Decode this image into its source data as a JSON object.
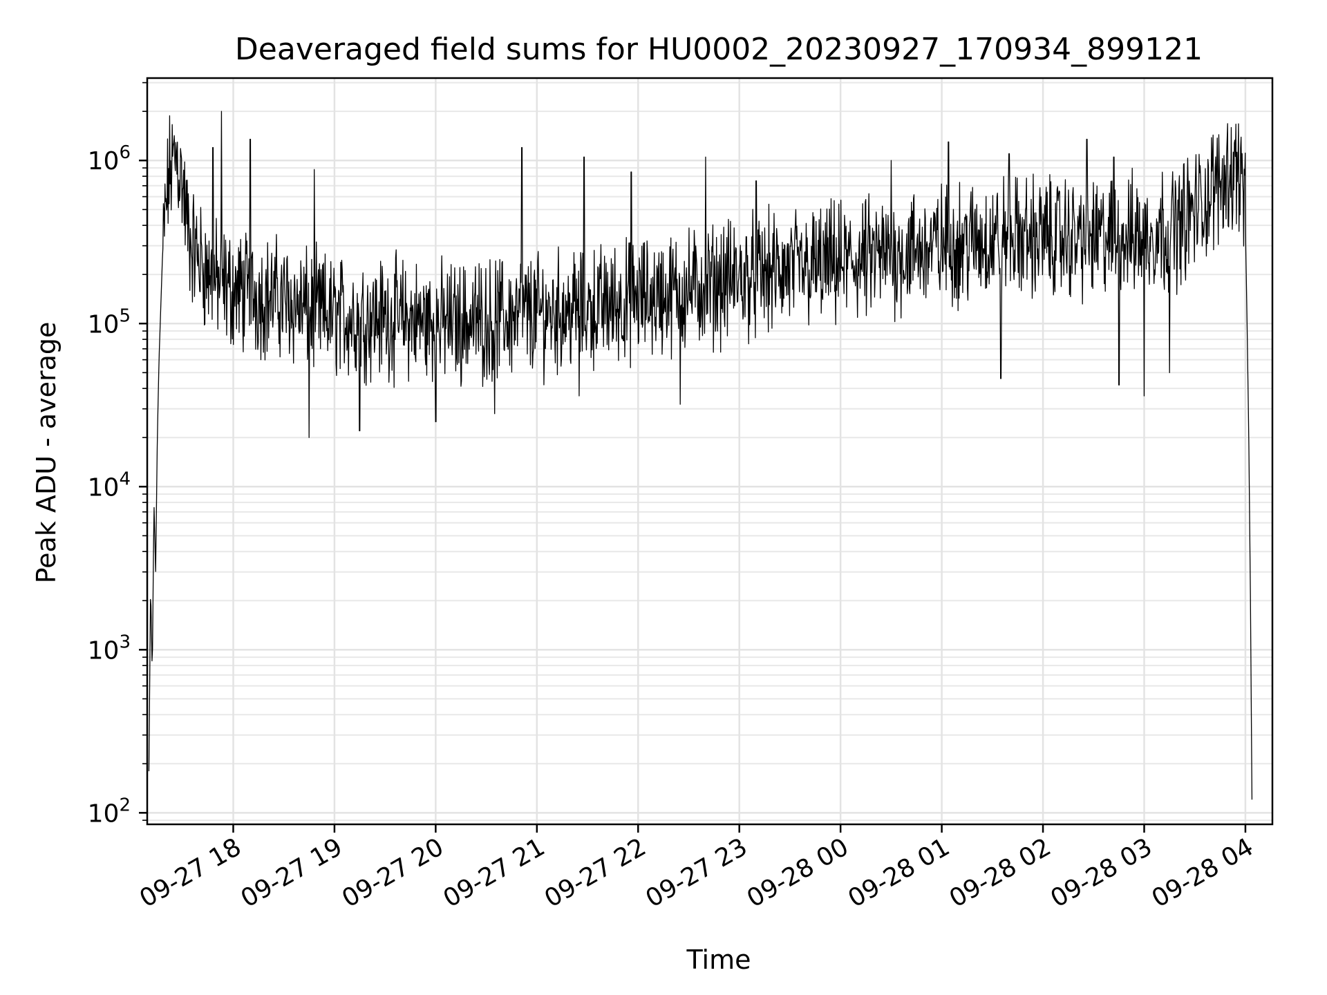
{
  "chart_data": {
    "type": "line",
    "title": "Deaveraged field sums for HU0002_20230927_170934_899121",
    "xlabel": "Time",
    "ylabel": "Peak ADU - average",
    "xscale": "time",
    "yscale": "log",
    "xlim": [
      "2023-09-27 17:09",
      "2023-09-28 04:16"
    ],
    "ylim": [
      85,
      3200000
    ],
    "grid": true,
    "x_ticks": [
      {
        "t": "2023-09-27 18:00",
        "label": "09-27 18"
      },
      {
        "t": "2023-09-27 19:00",
        "label": "09-27 19"
      },
      {
        "t": "2023-09-27 20:00",
        "label": "09-27 20"
      },
      {
        "t": "2023-09-27 21:00",
        "label": "09-27 21"
      },
      {
        "t": "2023-09-27 22:00",
        "label": "09-27 22"
      },
      {
        "t": "2023-09-27 23:00",
        "label": "09-27 23"
      },
      {
        "t": "2023-09-28 00:00",
        "label": "09-28 00"
      },
      {
        "t": "2023-09-28 01:00",
        "label": "09-28 01"
      },
      {
        "t": "2023-09-28 02:00",
        "label": "09-28 02"
      },
      {
        "t": "2023-09-28 03:00",
        "label": "09-28 03"
      },
      {
        "t": "2023-09-28 04:00",
        "label": "09-28 04"
      }
    ],
    "y_ticks": [
      {
        "value": 100,
        "base": "10",
        "exp": "2"
      },
      {
        "value": 1000,
        "base": "10",
        "exp": "3"
      },
      {
        "value": 10000,
        "base": "10",
        "exp": "4"
      },
      {
        "value": 100000,
        "base": "10",
        "exp": "5"
      },
      {
        "value": 1000000,
        "base": "10",
        "exp": "6"
      }
    ],
    "series": [
      {
        "color": "#000000",
        "points": [
          [
            "2023-09-27 17:10",
            180
          ],
          [
            "2023-09-27 17:11",
            2500
          ],
          [
            "2023-09-27 17:12",
            700
          ],
          [
            "2023-09-27 17:13",
            8000
          ],
          [
            "2023-09-27 17:14",
            3000
          ],
          [
            "2023-09-27 17:15",
            20000
          ],
          [
            "2023-09-27 17:16",
            60000
          ],
          [
            "2023-09-27 17:18",
            250000
          ],
          [
            "2023-09-27 17:20",
            500000
          ],
          [
            "2023-09-27 17:22",
            800000
          ],
          [
            "2023-09-27 17:24",
            950000
          ],
          [
            "2023-09-27 17:26",
            1100000
          ],
          [
            "2023-09-27 17:28",
            900000
          ],
          [
            "2023-09-27 17:30",
            700000
          ],
          [
            "2023-09-27 17:32",
            450000
          ],
          [
            "2023-09-27 17:35",
            300000
          ],
          [
            "2023-09-27 17:40",
            250000
          ],
          [
            "2023-09-27 17:45",
            200000
          ],
          [
            "2023-09-27 17:50",
            180000
          ],
          [
            "2023-09-27 17:55",
            170000
          ],
          [
            "2023-09-27 18:00",
            160000
          ],
          [
            "2023-09-27 18:15",
            150000
          ],
          [
            "2023-09-27 18:30",
            140000
          ],
          [
            "2023-09-27 18:45",
            120000
          ],
          [
            "2023-09-27 19:00",
            110000
          ],
          [
            "2023-09-27 19:30",
            110000
          ],
          [
            "2023-09-27 20:00",
            100000
          ],
          [
            "2023-09-27 20:30",
            105000
          ],
          [
            "2023-09-27 21:00",
            115000
          ],
          [
            "2023-09-27 21:30",
            125000
          ],
          [
            "2023-09-27 22:00",
            140000
          ],
          [
            "2023-09-27 22:30",
            160000
          ],
          [
            "2023-09-27 23:00",
            190000
          ],
          [
            "2023-09-27 23:30",
            210000
          ],
          [
            "2023-09-28 00:00",
            230000
          ],
          [
            "2023-09-28 00:30",
            260000
          ],
          [
            "2023-09-28 01:00",
            300000
          ],
          [
            "2023-09-28 01:30",
            330000
          ],
          [
            "2023-09-28 02:00",
            340000
          ],
          [
            "2023-09-28 02:30",
            330000
          ],
          [
            "2023-09-28 03:00",
            350000
          ],
          [
            "2023-09-28 03:20",
            400000
          ],
          [
            "2023-09-28 03:35",
            550000
          ],
          [
            "2023-09-28 03:45",
            750000
          ],
          [
            "2023-09-28 03:50",
            850000
          ],
          [
            "2023-09-28 03:55",
            900000
          ],
          [
            "2023-09-28 03:58",
            800000
          ],
          [
            "2023-09-28 04:00",
            400000
          ],
          [
            "2023-09-28 04:01",
            100000
          ],
          [
            "2023-09-28 04:02",
            20000
          ],
          [
            "2023-09-28 04:03",
            2000
          ],
          [
            "2023-09-28 04:04",
            85
          ]
        ],
        "spikes": [
          [
            "2023-09-27 17:48",
            1200000
          ],
          [
            "2023-09-27 17:53",
            2000000
          ],
          [
            "2023-09-27 18:10",
            1350000
          ],
          [
            "2023-09-27 18:48",
            880000
          ],
          [
            "2023-09-27 20:51",
            1200000
          ],
          [
            "2023-09-27 21:28",
            1050000
          ],
          [
            "2023-09-27 21:56",
            850000
          ],
          [
            "2023-09-27 22:40",
            1050000
          ],
          [
            "2023-09-27 23:10",
            750000
          ],
          [
            "2023-09-28 00:30",
            1000000
          ],
          [
            "2023-09-28 01:04",
            1300000
          ],
          [
            "2023-09-28 01:40",
            1100000
          ],
          [
            "2023-09-28 02:26",
            1350000
          ],
          [
            "2023-09-28 02:42",
            1050000
          ],
          [
            "2023-09-28 04:05",
            120
          ]
        ],
        "dips": [
          [
            "2023-09-27 18:45",
            20000
          ],
          [
            "2023-09-27 19:15",
            22000
          ],
          [
            "2023-09-27 20:00",
            25000
          ],
          [
            "2023-09-27 20:35",
            28000
          ],
          [
            "2023-09-27 21:25",
            36000
          ],
          [
            "2023-09-27 22:25",
            32000
          ],
          [
            "2023-09-28 01:35",
            46000
          ],
          [
            "2023-09-28 02:45",
            42000
          ],
          [
            "2023-09-28 03:00",
            36000
          ],
          [
            "2023-09-28 03:15",
            50000
          ]
        ]
      }
    ]
  }
}
